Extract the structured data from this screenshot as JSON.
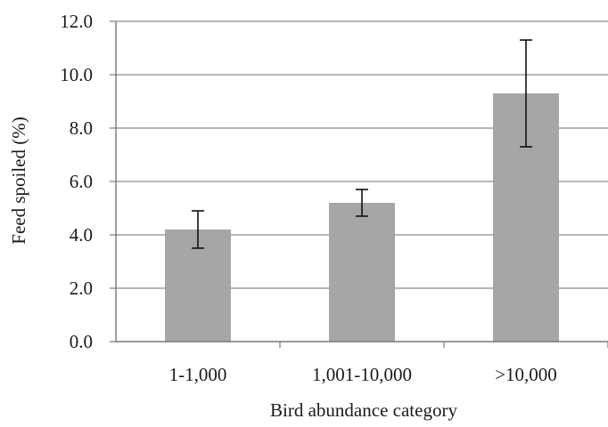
{
  "chart_data": {
    "type": "bar",
    "title": "",
    "xlabel": "Bird abundance category",
    "ylabel": "Feed spoiled (%)",
    "categories": [
      "1-1,000",
      "1,001-10,000",
      ">10,000"
    ],
    "values": [
      4.2,
      5.2,
      9.3
    ],
    "error_low": [
      3.5,
      4.7,
      7.3
    ],
    "error_high": [
      4.9,
      5.7,
      11.3
    ],
    "ylim": [
      0,
      12
    ],
    "yticks": [
      "0.0",
      "2.0",
      "4.0",
      "6.0",
      "8.0",
      "10.0",
      "12.0"
    ],
    "grid": true,
    "legend": "none",
    "bar_color": "#a6a6a6",
    "grid_color": "#8c8c8c",
    "axis_color": "#777777",
    "error_bar_color": "#111111"
  }
}
